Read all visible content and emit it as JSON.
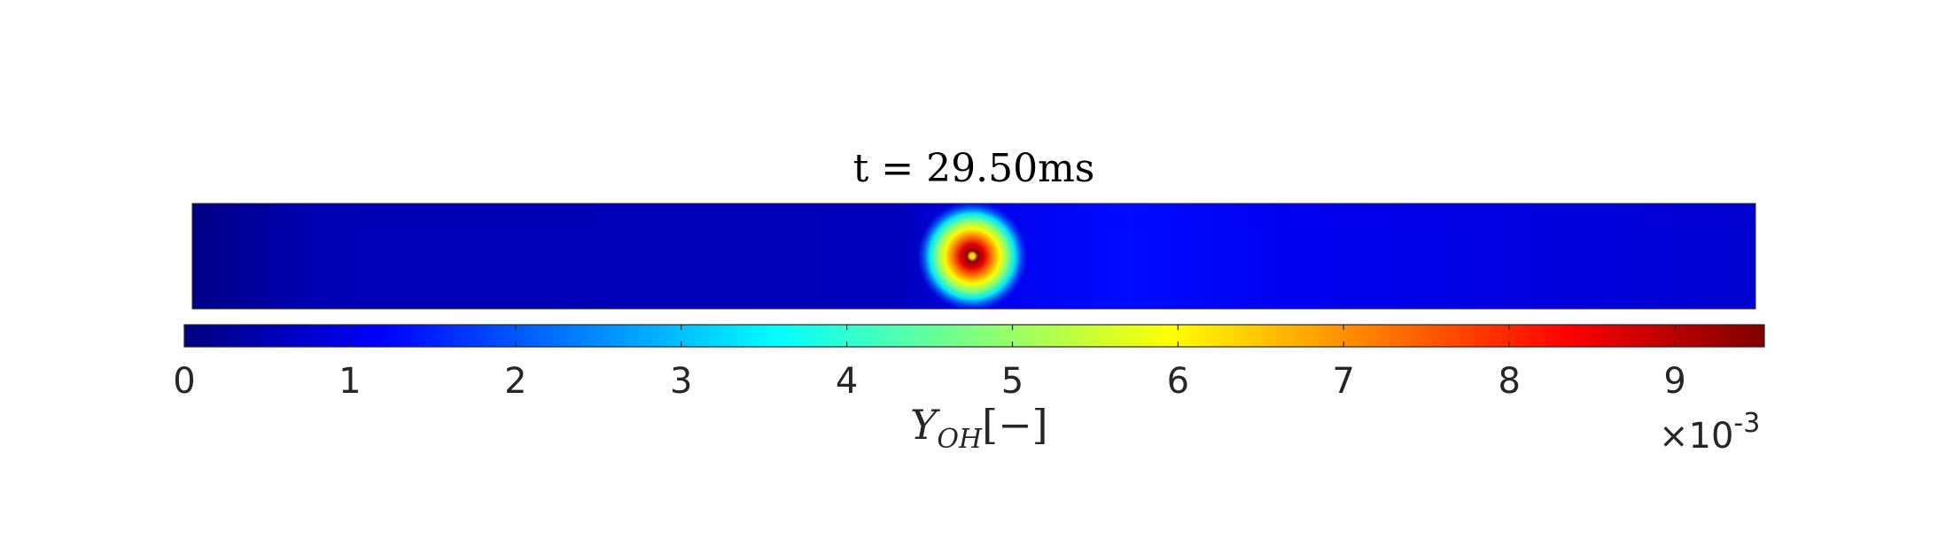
{
  "chart_data": {
    "type": "heatmap",
    "title": "t = 29.50ms",
    "colormap": "jet",
    "field": {
      "background_gradient": [
        {
          "x": 0.0,
          "value": 0.05
        },
        {
          "x": 0.08,
          "value": 0.5
        },
        {
          "x": 0.45,
          "value": 0.55
        },
        {
          "x": 0.5,
          "value": 1.0
        },
        {
          "x": 0.6,
          "value": 1.3
        },
        {
          "x": 0.7,
          "value": 1.05
        },
        {
          "x": 1.0,
          "value": 0.75
        }
      ],
      "hotspot": {
        "x": 0.499,
        "y": 0.5,
        "peak_value": 9.5
      }
    },
    "colorbar": {
      "label_main": "Y",
      "label_sub": "OH",
      "label_unit": "[−]",
      "ticks": [
        0,
        1,
        2,
        3,
        4,
        5,
        6,
        7,
        8,
        9
      ],
      "tick_labels": [
        "0",
        "1",
        "2",
        "3",
        "4",
        "5",
        "6",
        "7",
        "8",
        "9"
      ],
      "range": [
        0,
        9.54
      ],
      "scale_multiplier": "×10",
      "scale_exponent": "-3",
      "placement": "bottom"
    }
  }
}
